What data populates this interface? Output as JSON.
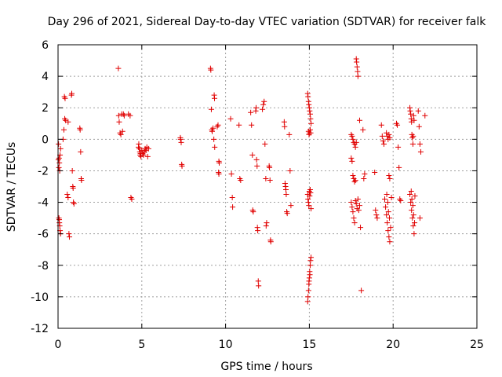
{
  "chart_data": {
    "type": "scatter",
    "title": "Day 296 of 2021, Sidereal Day-to-day VTEC variation (SDTVAR) for receiver falk",
    "xlabel": "GPS time / hours",
    "ylabel": "SDTVAR / TECUs",
    "xlim": [
      0,
      25
    ],
    "ylim": [
      -12,
      6
    ],
    "xticks": [
      0,
      5,
      10,
      15,
      20,
      25
    ],
    "yticks": [
      -12,
      -10,
      -8,
      -6,
      -4,
      -2,
      0,
      2,
      4,
      6
    ],
    "xtick_labels": [
      "0",
      "5",
      "10",
      "15",
      "20",
      "25"
    ],
    "ytick_labels": [
      "-12",
      "-10",
      "-8",
      "-6",
      "-4",
      "-2",
      "0",
      "2",
      "4",
      "6"
    ],
    "grid": true,
    "marker": "+",
    "color": "#e00000",
    "series": [
      {
        "name": "SDTVAR",
        "points": [
          [
            0.02,
            -1.3
          ],
          [
            0.05,
            -1.8
          ],
          [
            0.08,
            -1.5
          ],
          [
            0.1,
            -2.0
          ],
          [
            0.12,
            -1.0
          ],
          [
            0.15,
            -0.6
          ],
          [
            0.03,
            -0.3
          ],
          [
            0.06,
            -1.2
          ],
          [
            0.05,
            -5.0
          ],
          [
            0.08,
            -5.3
          ],
          [
            0.1,
            -5.5
          ],
          [
            0.12,
            -5.8
          ],
          [
            0.15,
            -6.0
          ],
          [
            0.07,
            -5.1
          ],
          [
            0.3,
            0.0
          ],
          [
            0.35,
            0.6
          ],
          [
            0.4,
            1.3
          ],
          [
            0.45,
            1.2
          ],
          [
            0.38,
            2.7
          ],
          [
            0.42,
            2.6
          ],
          [
            0.6,
            1.1
          ],
          [
            0.55,
            -3.5
          ],
          [
            0.6,
            -3.7
          ],
          [
            0.65,
            -6.0
          ],
          [
            0.68,
            -6.2
          ],
          [
            0.8,
            2.8
          ],
          [
            0.82,
            2.9
          ],
          [
            0.85,
            -2.0
          ],
          [
            0.88,
            -3.0
          ],
          [
            0.9,
            -3.1
          ],
          [
            0.92,
            -4.0
          ],
          [
            0.95,
            -4.1
          ],
          [
            1.3,
            0.7
          ],
          [
            1.32,
            0.6
          ],
          [
            1.35,
            -0.8
          ],
          [
            1.38,
            -2.5
          ],
          [
            1.4,
            -2.6
          ],
          [
            3.6,
            4.5
          ],
          [
            3.62,
            1.5
          ],
          [
            3.65,
            1.1
          ],
          [
            3.7,
            0.4
          ],
          [
            3.75,
            0.3
          ],
          [
            3.8,
            1.6
          ],
          [
            3.85,
            0.5
          ],
          [
            3.9,
            1.6
          ],
          [
            3.95,
            1.5
          ],
          [
            4.2,
            1.6
          ],
          [
            4.3,
            1.5
          ],
          [
            4.35,
            -3.7
          ],
          [
            4.4,
            -3.8
          ],
          [
            4.8,
            -0.5
          ],
          [
            4.82,
            -0.3
          ],
          [
            4.85,
            -0.6
          ],
          [
            4.88,
            -0.8
          ],
          [
            4.9,
            -1.0
          ],
          [
            4.92,
            -0.9
          ],
          [
            4.95,
            -1.1
          ],
          [
            5.0,
            -0.7
          ],
          [
            5.05,
            -0.9
          ],
          [
            5.1,
            -1.0
          ],
          [
            5.15,
            -0.8
          ],
          [
            5.2,
            -0.6
          ],
          [
            5.25,
            -0.7
          ],
          [
            5.3,
            -0.5
          ],
          [
            5.35,
            -1.1
          ],
          [
            5.4,
            -0.6
          ],
          [
            7.3,
            0.1
          ],
          [
            7.32,
            0.0
          ],
          [
            7.35,
            -0.2
          ],
          [
            7.38,
            -1.6
          ],
          [
            7.4,
            -1.7
          ],
          [
            9.1,
            4.5
          ],
          [
            9.12,
            4.4
          ],
          [
            9.15,
            1.9
          ],
          [
            9.18,
            0.6
          ],
          [
            9.2,
            0.5
          ],
          [
            9.25,
            0.7
          ],
          [
            9.3,
            0.0
          ],
          [
            9.35,
            -0.5
          ],
          [
            9.32,
            2.8
          ],
          [
            9.34,
            2.6
          ],
          [
            9.5,
            0.8
          ],
          [
            9.55,
            0.9
          ],
          [
            9.6,
            -1.4
          ],
          [
            9.62,
            -1.5
          ],
          [
            9.58,
            -2.1
          ],
          [
            9.6,
            -2.2
          ],
          [
            10.3,
            1.3
          ],
          [
            10.35,
            -2.2
          ],
          [
            10.4,
            -3.7
          ],
          [
            10.42,
            -4.3
          ],
          [
            10.8,
            0.9
          ],
          [
            10.85,
            -2.5
          ],
          [
            10.9,
            -2.6
          ],
          [
            11.5,
            1.7
          ],
          [
            11.55,
            0.9
          ],
          [
            11.6,
            -1.0
          ],
          [
            11.62,
            -4.5
          ],
          [
            11.65,
            -4.6
          ],
          [
            11.8,
            1.8
          ],
          [
            11.82,
            2.0
          ],
          [
            11.85,
            -1.3
          ],
          [
            11.88,
            -1.7
          ],
          [
            11.9,
            -5.6
          ],
          [
            11.92,
            -5.8
          ],
          [
            11.95,
            -9.0
          ],
          [
            11.97,
            -9.3
          ],
          [
            12.2,
            1.9
          ],
          [
            12.25,
            2.2
          ],
          [
            12.3,
            2.4
          ],
          [
            12.35,
            -0.3
          ],
          [
            12.4,
            -2.5
          ],
          [
            12.42,
            -5.5
          ],
          [
            12.45,
            -5.3
          ],
          [
            12.6,
            -1.7
          ],
          [
            12.62,
            -1.8
          ],
          [
            12.65,
            -2.6
          ],
          [
            12.68,
            -6.4
          ],
          [
            12.7,
            -6.5
          ],
          [
            13.5,
            1.1
          ],
          [
            13.52,
            0.8
          ],
          [
            13.55,
            -2.8
          ],
          [
            13.58,
            -3.0
          ],
          [
            13.6,
            -3.2
          ],
          [
            13.62,
            -3.5
          ],
          [
            13.65,
            -4.6
          ],
          [
            13.68,
            -4.7
          ],
          [
            13.8,
            0.3
          ],
          [
            13.85,
            -2.0
          ],
          [
            13.9,
            -4.2
          ],
          [
            14.9,
            2.9
          ],
          [
            14.92,
            2.7
          ],
          [
            14.95,
            2.4
          ],
          [
            14.97,
            2.2
          ],
          [
            15.0,
            2.0
          ],
          [
            15.02,
            1.8
          ],
          [
            15.05,
            1.6
          ],
          [
            15.07,
            1.3
          ],
          [
            15.1,
            1.0
          ],
          [
            14.95,
            0.5
          ],
          [
            14.98,
            0.3
          ],
          [
            15.0,
            0.4
          ],
          [
            15.05,
            0.6
          ],
          [
            15.08,
            0.4
          ],
          [
            14.9,
            -3.5
          ],
          [
            14.92,
            -3.8
          ],
          [
            14.95,
            -4.0
          ],
          [
            14.97,
            -4.2
          ],
          [
            15.0,
            -3.3
          ],
          [
            15.02,
            -3.6
          ],
          [
            15.05,
            -3.2
          ],
          [
            15.07,
            -3.4
          ],
          [
            15.1,
            -4.4
          ],
          [
            14.9,
            -10.3
          ],
          [
            14.92,
            -10.0
          ],
          [
            14.95,
            -9.6
          ],
          [
            14.97,
            -9.2
          ],
          [
            15.0,
            -8.8
          ],
          [
            15.02,
            -8.4
          ],
          [
            15.05,
            -8.0
          ],
          [
            15.07,
            -7.7
          ],
          [
            15.1,
            -7.5
          ],
          [
            14.98,
            -9.0
          ],
          [
            15.03,
            -8.6
          ],
          [
            17.5,
            0.3
          ],
          [
            17.55,
            0.2
          ],
          [
            17.6,
            0.0
          ],
          [
            17.65,
            -0.2
          ],
          [
            17.7,
            -0.3
          ],
          [
            17.75,
            -0.5
          ],
          [
            17.8,
            -0.2
          ],
          [
            17.5,
            -1.2
          ],
          [
            17.55,
            -1.4
          ],
          [
            17.6,
            -2.3
          ],
          [
            17.65,
            -2.5
          ],
          [
            17.7,
            -2.7
          ],
          [
            17.75,
            -2.6
          ],
          [
            17.5,
            -4.0
          ],
          [
            17.55,
            -4.3
          ],
          [
            17.6,
            -4.6
          ],
          [
            17.65,
            -5.0
          ],
          [
            17.7,
            -5.3
          ],
          [
            17.75,
            -3.9
          ],
          [
            17.8,
            -4.1
          ],
          [
            17.85,
            -4.4
          ],
          [
            17.9,
            -3.8
          ],
          [
            17.95,
            -4.5
          ],
          [
            18.0,
            -4.2
          ],
          [
            17.8,
            5.1
          ],
          [
            17.82,
            4.9
          ],
          [
            17.85,
            4.6
          ],
          [
            17.88,
            4.3
          ],
          [
            17.9,
            4.0
          ],
          [
            18.0,
            1.2
          ],
          [
            18.05,
            -5.6
          ],
          [
            18.1,
            -9.6
          ],
          [
            18.2,
            0.6
          ],
          [
            18.25,
            -2.5
          ],
          [
            18.3,
            -2.2
          ],
          [
            18.9,
            -2.1
          ],
          [
            18.95,
            -4.5
          ],
          [
            19.0,
            -4.8
          ],
          [
            19.05,
            -5.0
          ],
          [
            19.3,
            0.9
          ],
          [
            19.35,
            0.2
          ],
          [
            19.4,
            -0.1
          ],
          [
            19.45,
            -0.3
          ],
          [
            19.5,
            -3.8
          ],
          [
            19.55,
            -4.3
          ],
          [
            19.6,
            -4.8
          ],
          [
            19.65,
            -5.3
          ],
          [
            19.7,
            -5.8
          ],
          [
            19.75,
            -6.2
          ],
          [
            19.8,
            -6.5
          ],
          [
            19.62,
            -3.5
          ],
          [
            19.68,
            -4.0
          ],
          [
            19.72,
            -4.6
          ],
          [
            19.78,
            -5.0
          ],
          [
            19.85,
            -5.6
          ],
          [
            19.9,
            -3.7
          ],
          [
            19.6,
            0.4
          ],
          [
            19.65,
            0.2
          ],
          [
            19.7,
            0.0
          ],
          [
            19.75,
            0.3
          ],
          [
            19.8,
            0.1
          ],
          [
            19.75,
            -2.3
          ],
          [
            19.8,
            -2.5
          ],
          [
            20.2,
            1.0
          ],
          [
            20.25,
            0.9
          ],
          [
            20.3,
            -0.5
          ],
          [
            20.35,
            -1.8
          ],
          [
            20.4,
            -3.8
          ],
          [
            20.45,
            -3.9
          ],
          [
            21.0,
            2.0
          ],
          [
            21.02,
            1.8
          ],
          [
            21.05,
            1.6
          ],
          [
            21.08,
            1.3
          ],
          [
            21.1,
            1.1
          ],
          [
            21.12,
            0.3
          ],
          [
            21.15,
            0.1
          ],
          [
            21.18,
            -0.3
          ],
          [
            21.2,
            0.2
          ],
          [
            21.22,
            1.5
          ],
          [
            21.25,
            1.2
          ],
          [
            21.0,
            -3.5
          ],
          [
            21.05,
            -4.0
          ],
          [
            21.1,
            -4.5
          ],
          [
            21.15,
            -5.0
          ],
          [
            21.2,
            -5.5
          ],
          [
            21.25,
            -6.0
          ],
          [
            21.08,
            -3.3
          ],
          [
            21.12,
            -3.8
          ],
          [
            21.18,
            -4.2
          ],
          [
            21.22,
            -4.8
          ],
          [
            21.28,
            -5.3
          ],
          [
            21.3,
            -3.6
          ],
          [
            21.5,
            1.8
          ],
          [
            21.55,
            0.8
          ],
          [
            21.6,
            -0.3
          ],
          [
            21.65,
            -0.8
          ],
          [
            21.6,
            -5.0
          ],
          [
            21.9,
            1.5
          ]
        ]
      }
    ]
  }
}
